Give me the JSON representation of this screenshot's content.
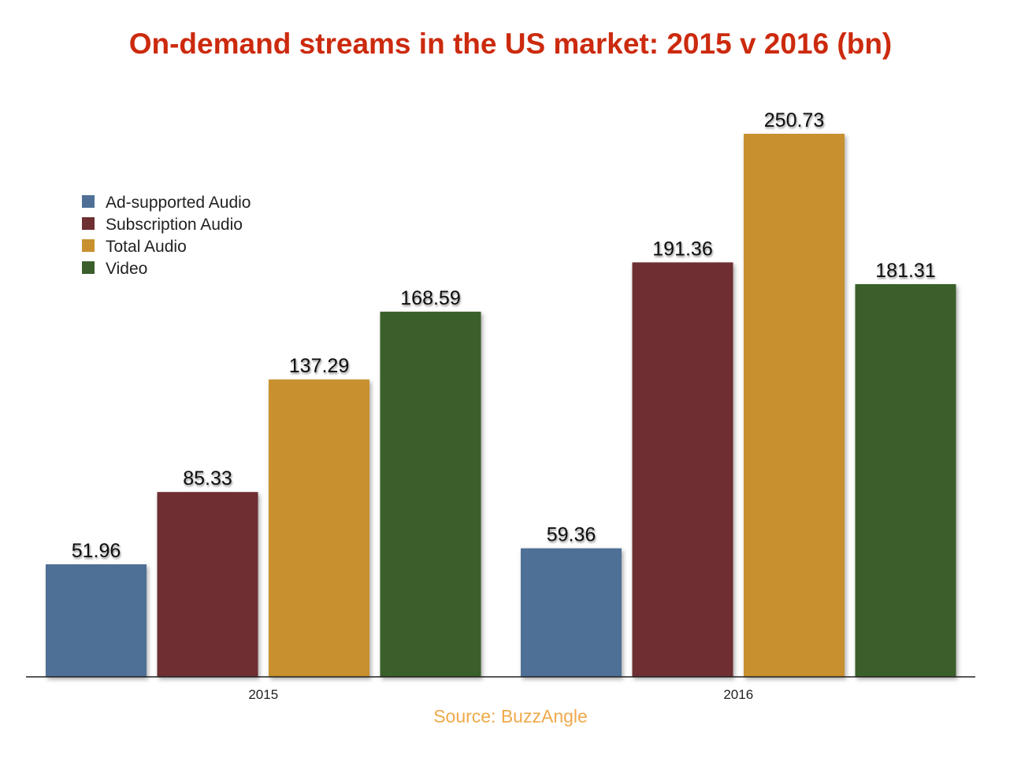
{
  "chart_data": {
    "type": "bar",
    "title": "On-demand streams in the US market: 2015 v 2016 (bn)",
    "source": "Source: BuzzAngle",
    "categories": [
      "2015",
      "2016"
    ],
    "series": [
      {
        "name": "Ad-supported Audio",
        "values": [
          51.96,
          59.36
        ],
        "labels": [
          "51.96",
          "59.36"
        ],
        "color": "#4f6f96"
      },
      {
        "name": "Subscription Audio",
        "values": [
          85.33,
          191.36
        ],
        "labels": [
          "85.33",
          "191.36"
        ],
        "color": "#6e2f33"
      },
      {
        "name": "Total Audio",
        "values": [
          137.29,
          250.73
        ],
        "labels": [
          "137.29",
          "250.73"
        ],
        "color": "#c8902e"
      },
      {
        "name": "Video",
        "values": [
          168.59,
          181.31
        ],
        "labels": [
          "168.59",
          "181.31"
        ],
        "color": "#3a5e2c"
      }
    ],
    "ylim": [
      0,
      250.73
    ],
    "grid": false,
    "legend_position": "top-left",
    "title_color": "#cc2a0e",
    "source_color": "#f0a94a"
  }
}
